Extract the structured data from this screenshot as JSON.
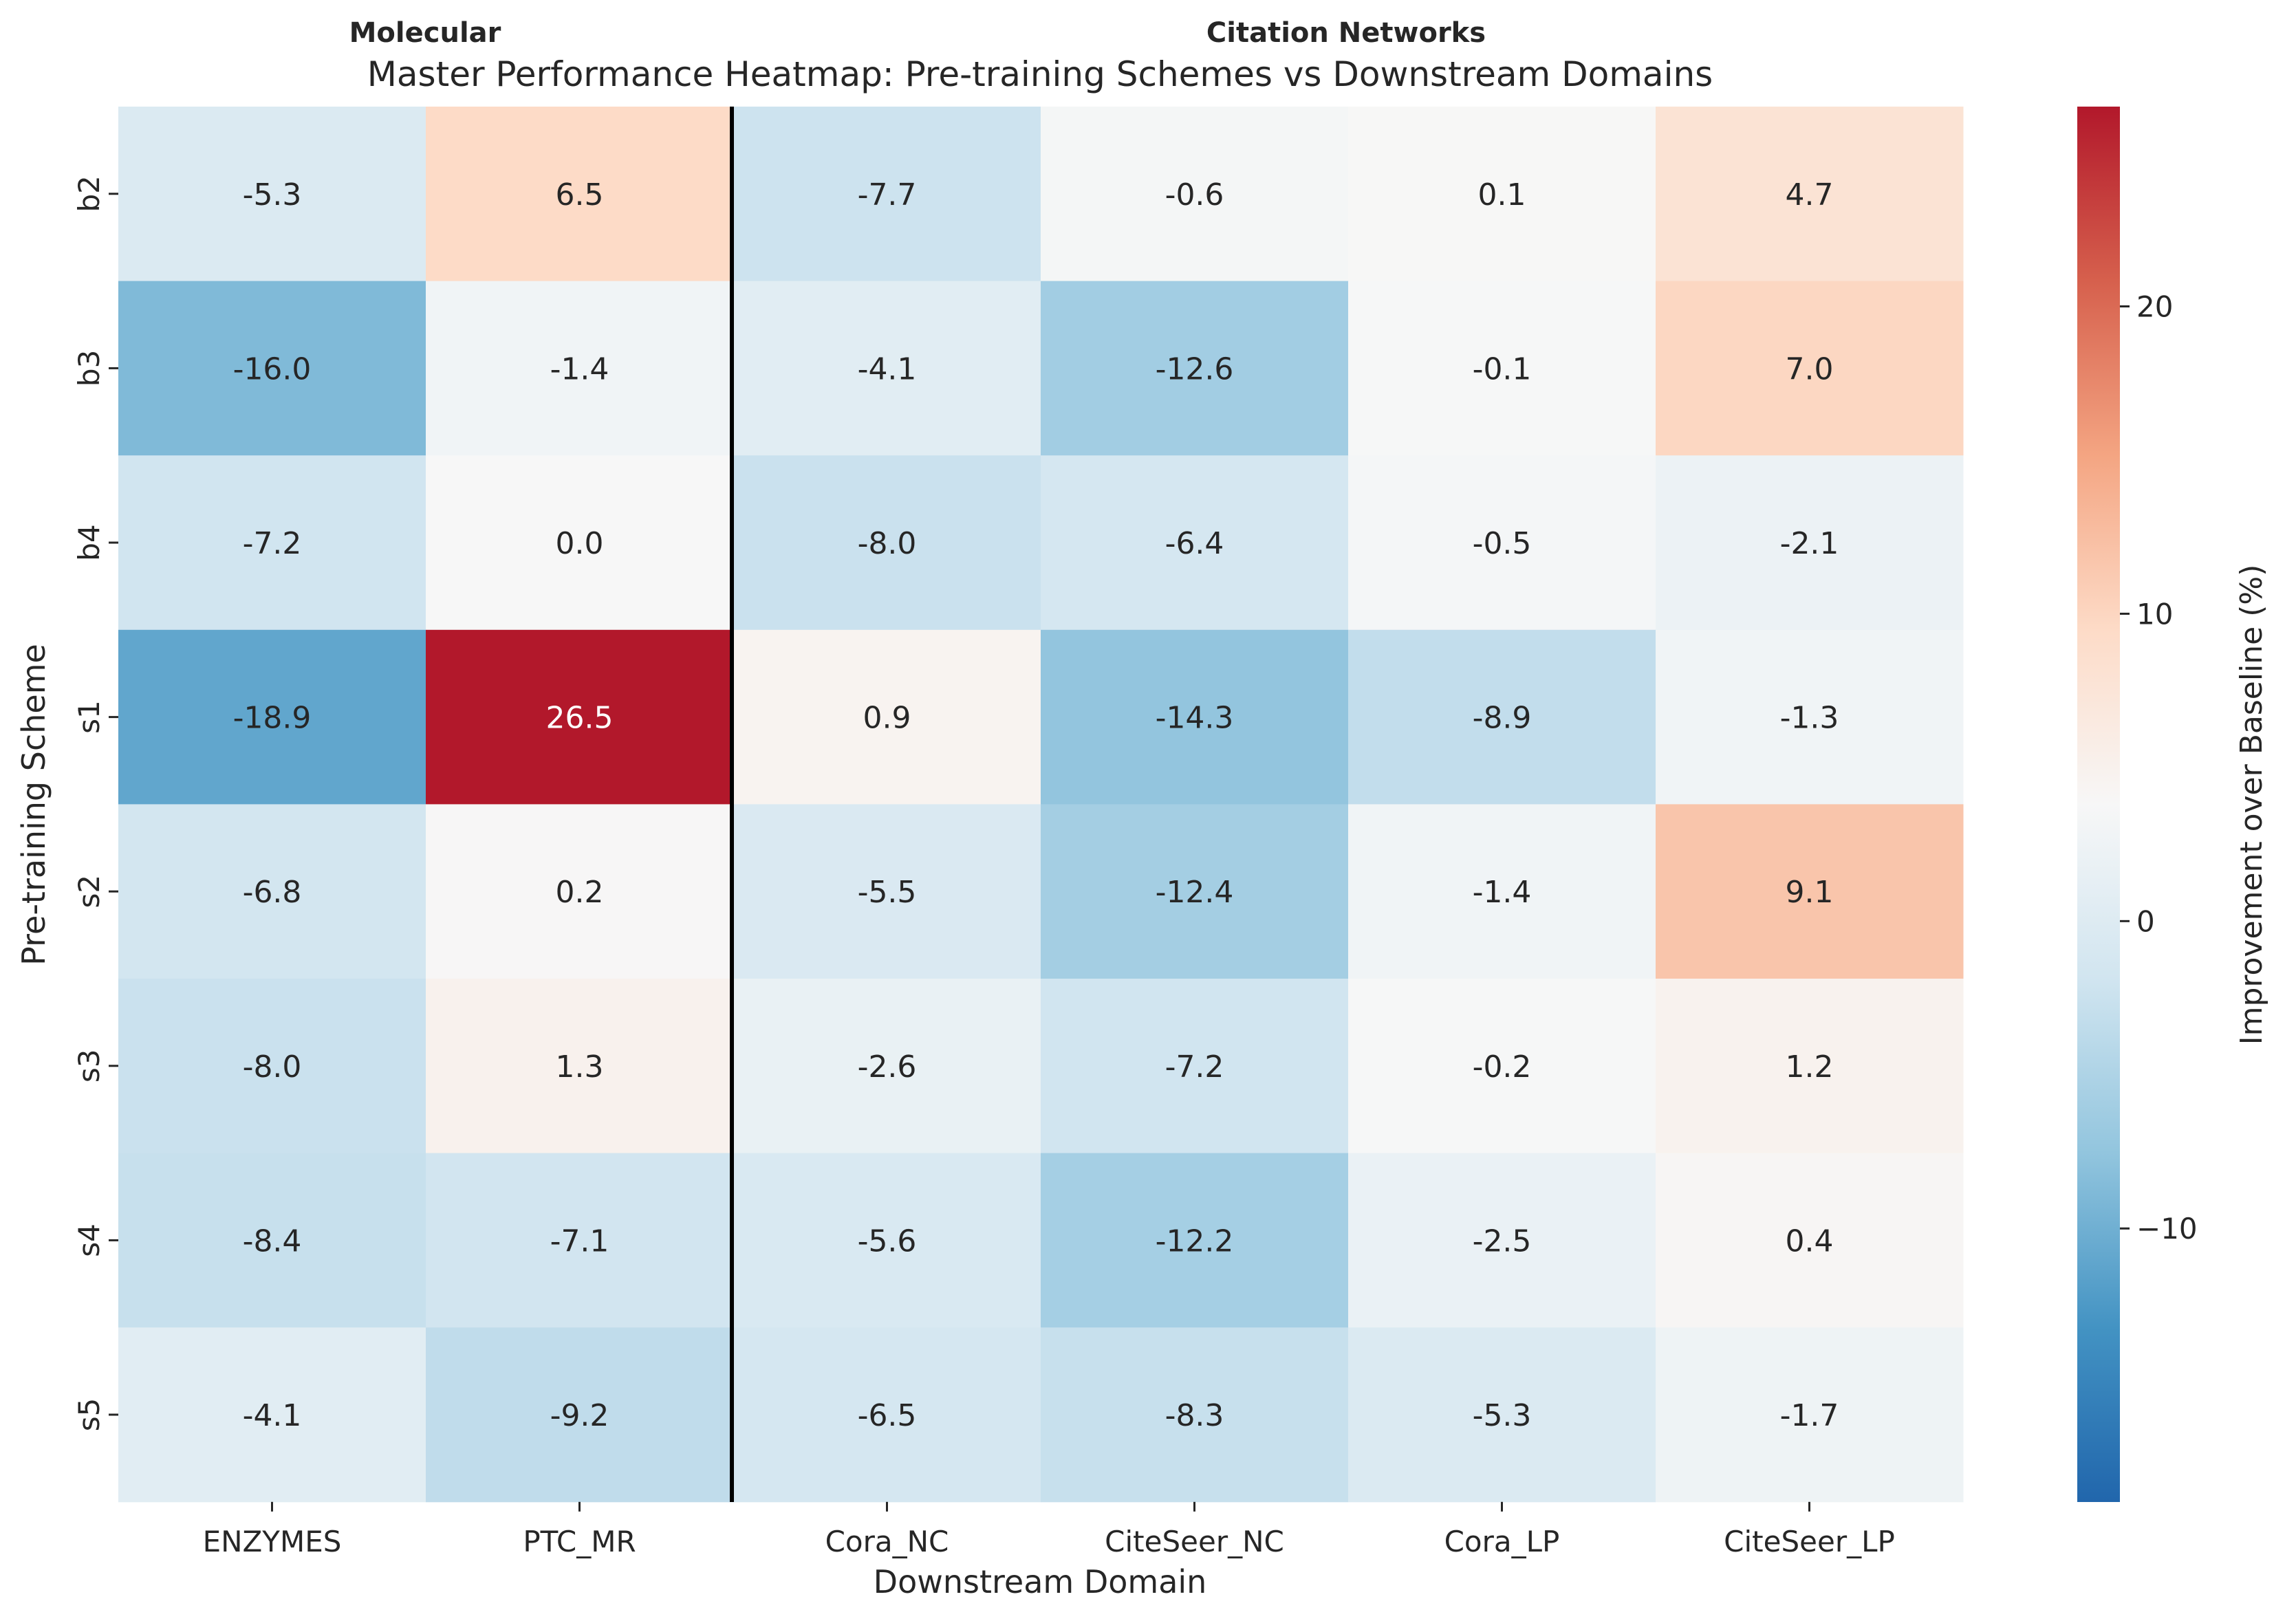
{
  "chart_data": {
    "type": "heatmap",
    "title": "Master Performance Heatmap: Pre-training Schemes vs Downstream Domains",
    "xlabel": "Downstream Domain",
    "ylabel": "Pre-training Scheme",
    "group_labels": [
      "Molecular",
      "Citation Networks"
    ],
    "columns": [
      "ENZYMES",
      "PTC_MR",
      "Cora_NC",
      "CiteSeer_NC",
      "Cora_LP",
      "CiteSeer_LP"
    ],
    "rows": [
      "b2",
      "b3",
      "b4",
      "s1",
      "s2",
      "s3",
      "s4",
      "s5"
    ],
    "values": [
      [
        -5.3,
        6.5,
        -7.7,
        -0.6,
        0.1,
        4.7
      ],
      [
        -16.0,
        -1.4,
        -4.1,
        -12.6,
        -0.1,
        7.0
      ],
      [
        -7.2,
        0.0,
        -8.0,
        -6.4,
        -0.5,
        -2.1
      ],
      [
        -18.9,
        26.5,
        0.9,
        -14.3,
        -8.9,
        -1.3
      ],
      [
        -6.8,
        0.2,
        -5.5,
        -12.4,
        -1.4,
        9.1
      ],
      [
        -8.0,
        1.3,
        -2.6,
        -7.2,
        -0.2,
        1.2
      ],
      [
        -8.4,
        -7.1,
        -5.6,
        -12.2,
        -2.5,
        0.4
      ],
      [
        -4.1,
        -9.2,
        -6.5,
        -8.3,
        -5.3,
        -1.7
      ]
    ],
    "colormap": "RdBu_r",
    "vmin": -18.9,
    "vmax": 26.5,
    "center": 0,
    "colorbar_label": "Improvement over Baseline (%)",
    "colorbar_ticks": [
      -10,
      0,
      10,
      20
    ],
    "colorbar_tick_labels": [
      "−10",
      "0",
      "10",
      "20"
    ],
    "group_divider_after_column": 2,
    "divider_color": "#000000"
  }
}
